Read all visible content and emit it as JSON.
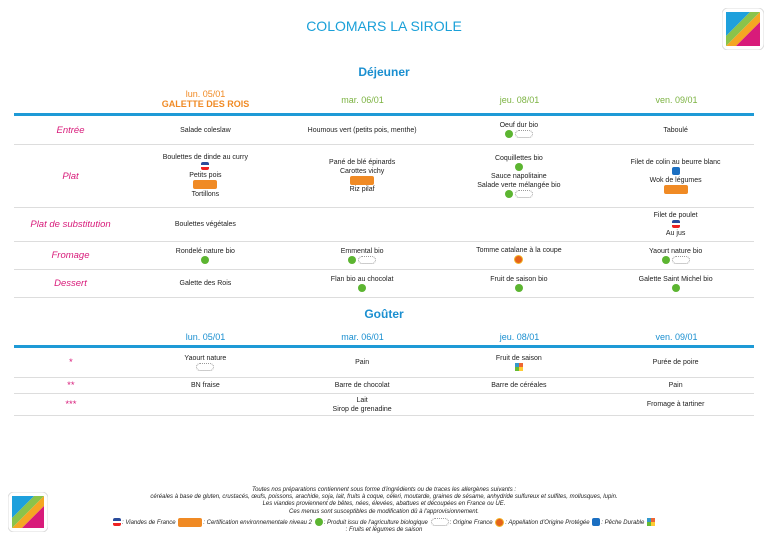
{
  "header": {
    "title": "COLOMARS LA SIROLE"
  },
  "lunch": {
    "title": "Déjeuner",
    "days": [
      "lun. 05/01",
      "mar. 06/01",
      "jeu. 08/01",
      "ven. 09/01"
    ],
    "special": "GALETTE DES ROIS",
    "rows": [
      {
        "label": "Entrée",
        "cells": [
          [
            "Salade coleslaw"
          ],
          [
            "Houmous vert (petits pois, menthe)"
          ],
          [
            "Oeuf dur bio"
          ],
          [
            "Taboulé"
          ]
        ]
      },
      {
        "label": "Plat",
        "cells": [
          [
            "Boulettes de dinde au curry",
            "Petits pois",
            "Tortillons"
          ],
          [
            "Pané de blé épinards",
            "Carottes vichy",
            "Riz pilaf"
          ],
          [
            "Coquillettes bio",
            "Sauce napolitaine",
            "Salade verte mélangée bio"
          ],
          [
            "Filet de colin au beurre blanc",
            "Wok de légumes"
          ]
        ]
      },
      {
        "label": "Plat de substitution",
        "cells": [
          [
            "Boulettes végétales"
          ],
          [],
          [],
          [
            "Filet de poulet",
            "Au jus"
          ]
        ]
      },
      {
        "label": "Fromage",
        "cells": [
          [
            "Rondelé nature bio"
          ],
          [
            "Emmental bio"
          ],
          [
            "Tomme catalane à la coupe"
          ],
          [
            "Yaourt nature bio"
          ]
        ]
      },
      {
        "label": "Dessert",
        "cells": [
          [
            "Galette des Rois"
          ],
          [
            "Flan bio au chocolat"
          ],
          [
            "Fruit de saison bio"
          ],
          [
            "Galette Saint Michel bio"
          ]
        ]
      }
    ]
  },
  "snack": {
    "title": "Goûter",
    "days": [
      "lun. 05/01",
      "mar. 06/01",
      "jeu. 08/01",
      "ven. 09/01"
    ],
    "rows": [
      {
        "label": "*",
        "cells": [
          [
            "Yaourt nature"
          ],
          [
            "Pain"
          ],
          [
            "Fruit de saison"
          ],
          [
            "Purée de poire"
          ]
        ]
      },
      {
        "label": "**",
        "cells": [
          [
            "BN fraise"
          ],
          [
            "Barre de chocolat"
          ],
          [
            "Barre de céréales"
          ],
          [
            "Pain"
          ]
        ]
      },
      {
        "label": "***",
        "cells": [
          [],
          [
            "Lait",
            "Sirop de grenadine"
          ],
          [],
          [
            "Fromage à tartiner"
          ]
        ]
      }
    ]
  },
  "footer": {
    "lines": [
      "Toutes nos préparations contiennent sous forme d'ingrédients ou de traces les allergènes suivants :",
      "céréales à base de gluten, crustacés, œufs, poissons, arachide, soja, lait, fruits à coque, céleri, moutarde, graines de sésame, anhydride sulfureux et sulfites, mollusques, lupin.",
      "Les viandes proviennent de bêtes, nées, élevées, abattues et découpées en France ou UE.",
      "Ces menus sont susceptibles de modification dû à l'approvisionnement."
    ],
    "legend": [
      ": Viandes de France",
      ": Certification environnementale niveau 2",
      ": Produit issu de l'agriculture biologique",
      ": Origine France",
      ": Appellation d'Origine Protégée",
      ": Pêche Durable",
      ": Fruits et légumes de saison"
    ]
  }
}
